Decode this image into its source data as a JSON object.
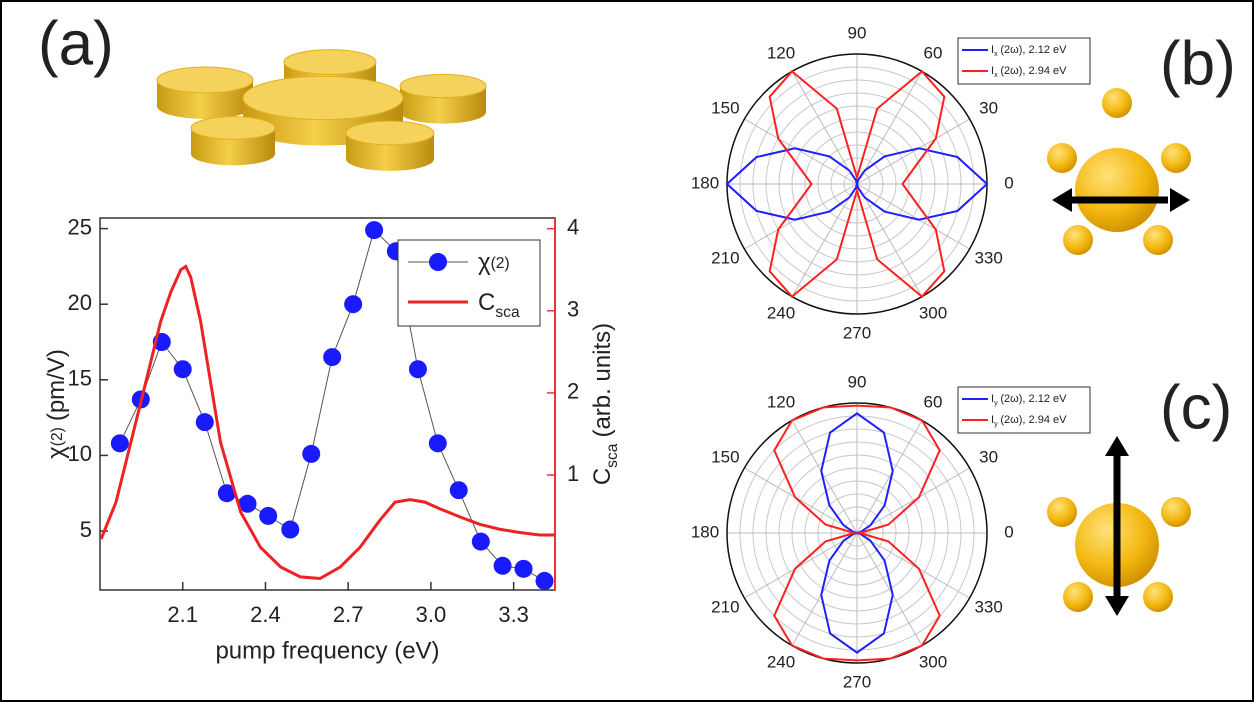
{
  "panels": {
    "a": "(a)",
    "b": "(b)",
    "c": "(c)"
  },
  "chart_data": [
    {
      "type": "combo",
      "xlabel": "pump frequency (eV)",
      "ylabel": [
        "χ",
        "(2)",
        "(pm/V)"
      ],
      "y2label": [
        "C",
        "sca",
        "(arb. units)"
      ],
      "xlim": [
        1.8,
        3.45
      ],
      "xticks": [
        2.1,
        2.4,
        2.7,
        {
          "value": 3,
          "label": "3.0"
        },
        3.3
      ],
      "ylim": [
        1.1,
        25.7
      ],
      "yticks": [
        5,
        10,
        15,
        20,
        25
      ],
      "y2lim": [
        -0.4,
        4.13
      ],
      "y2ticks": [
        1,
        2,
        3,
        4
      ],
      "y2color": "#e8333a",
      "legend": "upper right",
      "series": [
        {
          "name": [
            "χ",
            "(2)"
          ],
          "color": "#1a1aff",
          "line_color": "#555555",
          "marker": "circle",
          "x": [
            1.872,
            1.948,
            2.024,
            2.1,
            2.18,
            2.26,
            2.335,
            2.41,
            2.49,
            2.566,
            2.642,
            2.718,
            2.794,
            2.873,
            2.953,
            3.025,
            3.101,
            3.181,
            3.26,
            3.336,
            3.412
          ],
          "values": [
            10.8,
            13.7,
            17.5,
            15.7,
            12.2,
            7.5,
            6.8,
            6.0,
            5.1,
            10.1,
            16.5,
            20.0,
            24.9,
            23.5,
            15.7,
            10.8,
            7.7,
            4.3,
            2.7,
            2.5,
            1.7
          ]
        },
        {
          "name": [
            "C",
            "sca"
          ],
          "color": "#ee2222",
          "axis": "y2",
          "x": [
            1.804,
            1.858,
            1.912,
            1.966,
            2.02,
            2.057,
            2.093,
            2.111,
            2.129,
            2.165,
            2.201,
            2.237,
            2.31,
            2.382,
            2.455,
            2.526,
            2.598,
            2.671,
            2.743,
            2.815,
            2.87,
            2.924,
            2.978,
            3.032,
            3.105,
            3.177,
            3.249,
            3.322,
            3.394,
            3.448
          ],
          "values": [
            0.22,
            0.67,
            1.4,
            2.13,
            2.87,
            3.23,
            3.5,
            3.54,
            3.41,
            2.87,
            2.13,
            1.4,
            0.55,
            0.12,
            -0.12,
            -0.24,
            -0.26,
            -0.12,
            0.12,
            0.45,
            0.67,
            0.7,
            0.67,
            0.59,
            0.49,
            0.4,
            0.34,
            0.3,
            0.27,
            0.27
          ]
        }
      ]
    },
    {
      "type": "polar",
      "angle_ticks": [
        0,
        30,
        60,
        90,
        120,
        150,
        180,
        210,
        240,
        270,
        300,
        330
      ],
      "rlim": [
        0,
        1
      ],
      "rticks": [
        0.1,
        0.2,
        0.3,
        0.4,
        0.5,
        0.6,
        0.7,
        0.8,
        0.9,
        1.0
      ],
      "legend": "upper right",
      "theta": [
        0,
        15,
        30,
        45,
        60,
        75,
        90,
        105,
        120,
        135,
        150,
        165,
        180,
        195,
        210,
        225,
        240,
        255,
        270,
        285,
        300,
        315,
        330,
        345
      ],
      "series": [
        {
          "name": [
            "I",
            "x",
            "(2ω), 2.12 eV"
          ],
          "color": "#1f1fff",
          "values": [
            1.0,
            0.8,
            0.55,
            0.3,
            0.12,
            0.03,
            0.0,
            0.03,
            0.12,
            0.3,
            0.55,
            0.8,
            1.0,
            0.8,
            0.55,
            0.3,
            0.12,
            0.03,
            0.0,
            0.03,
            0.12,
            0.3,
            0.55,
            0.8
          ]
        },
        {
          "name": [
            "I",
            "x",
            "(2ω), 2.94 eV"
          ],
          "color": "#ff2020",
          "values": [
            0.35,
            0.45,
            0.7,
            0.95,
            1.0,
            0.6,
            0.05,
            0.6,
            1.0,
            0.95,
            0.7,
            0.45,
            0.35,
            0.45,
            0.7,
            0.95,
            1.0,
            0.6,
            0.05,
            0.6,
            1.0,
            0.95,
            0.7,
            0.45
          ]
        }
      ]
    },
    {
      "type": "polar",
      "angle_ticks": [
        0,
        30,
        60,
        90,
        120,
        150,
        180,
        210,
        240,
        270,
        300,
        330
      ],
      "rlim": [
        0,
        1
      ],
      "rticks": [
        0.1,
        0.2,
        0.3,
        0.4,
        0.5,
        0.6,
        0.7,
        0.8,
        0.9,
        1.0
      ],
      "legend": "upper right",
      "theta": [
        0,
        15,
        30,
        45,
        60,
        75,
        90,
        105,
        120,
        135,
        150,
        165,
        180,
        195,
        210,
        225,
        240,
        255,
        270,
        285,
        300,
        315,
        330,
        345
      ],
      "series": [
        {
          "name": [
            "I",
            "y",
            "(2ω), 2.12 eV"
          ],
          "color": "#1f1fff",
          "values": [
            0,
            0.03,
            0.12,
            0.3,
            0.55,
            0.8,
            0.92,
            0.8,
            0.55,
            0.3,
            0.12,
            0.03,
            0,
            0.03,
            0.12,
            0.3,
            0.55,
            0.8,
            0.92,
            0.8,
            0.55,
            0.3,
            0.12,
            0.03
          ]
        },
        {
          "name": [
            "I",
            "y",
            "(2ω), 2.94 eV"
          ],
          "color": "#ff2020",
          "values": [
            0.02,
            0.25,
            0.55,
            0.9,
            1.0,
            1.0,
            0.98,
            1.0,
            1.0,
            0.9,
            0.55,
            0.25,
            0.02,
            0.25,
            0.55,
            0.9,
            1.0,
            1.0,
            0.98,
            1.0,
            1.0,
            0.9,
            0.55,
            0.25
          ]
        }
      ]
    }
  ]
}
